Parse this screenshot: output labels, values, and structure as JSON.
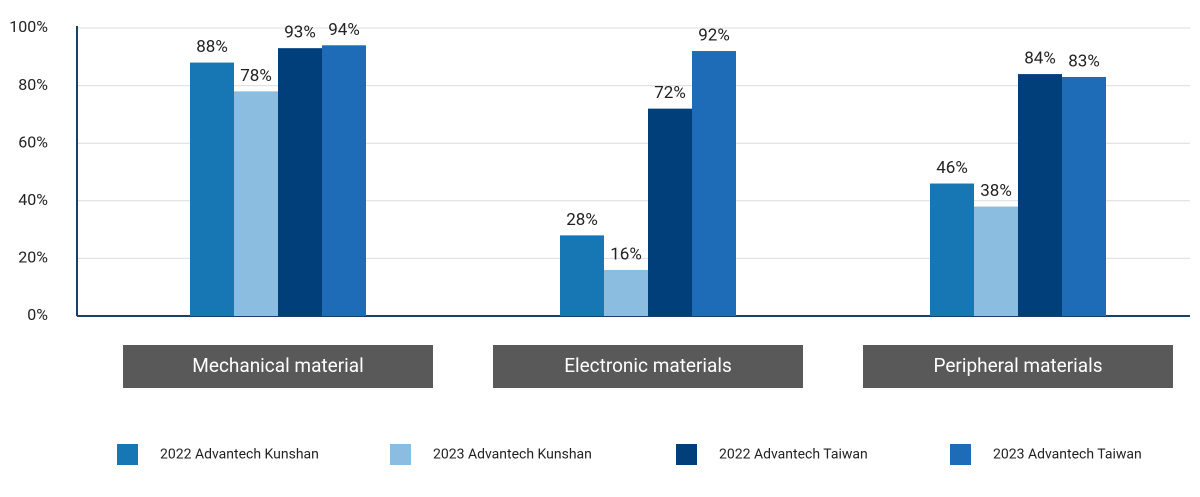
{
  "chart_data": {
    "type": "bar",
    "categories": [
      "Mechanical material",
      "Electronic materials",
      "Peripheral materials"
    ],
    "series": [
      {
        "name": "2022 Advantech Kunshan",
        "color": "#1777b4",
        "values": [
          88,
          28,
          46
        ],
        "value_labels": [
          "88%",
          "28%",
          "46%"
        ]
      },
      {
        "name": "2023 Advantech Kunshan",
        "color": "#8bbde0",
        "values": [
          78,
          16,
          38
        ],
        "value_labels": [
          "78%",
          "16%",
          "38%"
        ]
      },
      {
        "name": "2022 Advantech Taiwan",
        "color": "#003f7a",
        "values": [
          93,
          72,
          84
        ],
        "value_labels": [
          "93%",
          "72%",
          "84%"
        ]
      },
      {
        "name": "2023 Advantech Taiwan",
        "color": "#1e6bb8",
        "values": [
          94,
          92,
          83
        ],
        "value_labels": [
          "94%",
          "92%",
          "83%"
        ]
      }
    ],
    "ylim": [
      0,
      100
    ],
    "yticks": [
      {
        "value": 0,
        "label": "0%"
      },
      {
        "value": 20,
        "label": "20%"
      },
      {
        "value": 40,
        "label": "40%"
      },
      {
        "value": 60,
        "label": "60%"
      },
      {
        "value": 80,
        "label": "80%"
      },
      {
        "value": 100,
        "label": "100%"
      }
    ],
    "grid": true,
    "legend": "bottom"
  }
}
